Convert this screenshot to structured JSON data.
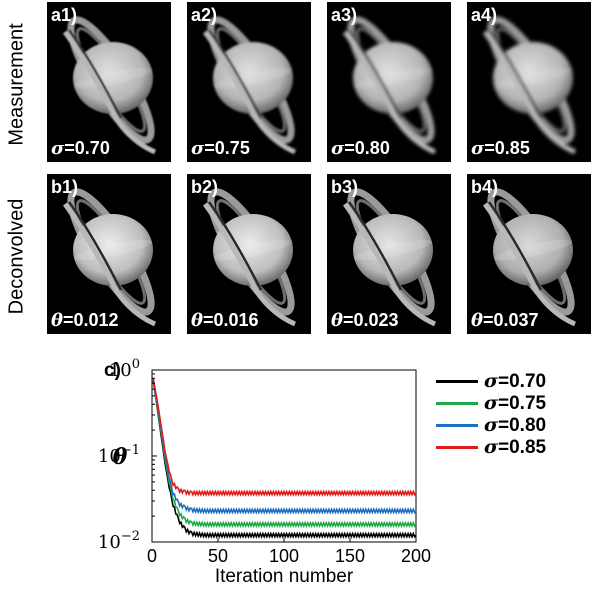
{
  "rows": [
    {
      "label": "Measurement",
      "panels": [
        {
          "tag": "a1)",
          "symbol": "σ",
          "value": "=0.70"
        },
        {
          "tag": "a2)",
          "symbol": "σ",
          "value": "=0.75"
        },
        {
          "tag": "a3)",
          "symbol": "σ",
          "value": "=0.80"
        },
        {
          "tag": "a4)",
          "symbol": "σ",
          "value": "=0.85"
        }
      ]
    },
    {
      "label": "Deconvolved",
      "panels": [
        {
          "tag": "b1)",
          "symbol": "θ",
          "value": "=0.012"
        },
        {
          "tag": "b2)",
          "symbol": "θ",
          "value": "=0.016"
        },
        {
          "tag": "b3)",
          "symbol": "θ",
          "value": "=0.023"
        },
        {
          "tag": "b4)",
          "symbol": "θ",
          "value": "=0.037"
        }
      ]
    }
  ],
  "chart_data": {
    "type": "line",
    "panel_label": "c)",
    "xlabel": "Iteration number",
    "ylabel": "θ",
    "y_scale": "log",
    "xlim": [
      0,
      200
    ],
    "ylim": [
      0.01,
      1
    ],
    "x_ticks": [
      "0",
      "50",
      "100",
      "150",
      "200"
    ],
    "y_ticks": [
      {
        "base": "10",
        "exp": "0"
      },
      {
        "base": "10",
        "exp": "−1"
      },
      {
        "base": "10",
        "exp": "−2"
      }
    ],
    "legend_position": "right",
    "series": [
      {
        "name_symbol": "σ",
        "name_value": "=0.70",
        "color": "#000000",
        "x": [
          1,
          5,
          10,
          15,
          20,
          25,
          30,
          40,
          50,
          100,
          150,
          200
        ],
        "y": [
          0.75,
          0.28,
          0.08,
          0.03,
          0.018,
          0.014,
          0.0125,
          0.012,
          0.012,
          0.012,
          0.012,
          0.012
        ]
      },
      {
        "name_symbol": "σ",
        "name_value": "=0.75",
        "color": "#1fa84a",
        "x": [
          1,
          5,
          10,
          15,
          20,
          25,
          30,
          40,
          50,
          100,
          150,
          200
        ],
        "y": [
          0.75,
          0.3,
          0.09,
          0.035,
          0.022,
          0.018,
          0.0165,
          0.016,
          0.016,
          0.016,
          0.016,
          0.016
        ]
      },
      {
        "name_symbol": "σ",
        "name_value": "=0.80",
        "color": "#1e6fbf",
        "x": [
          1,
          5,
          10,
          15,
          20,
          25,
          30,
          40,
          50,
          100,
          150,
          200
        ],
        "y": [
          0.75,
          0.32,
          0.1,
          0.04,
          0.028,
          0.025,
          0.0235,
          0.023,
          0.023,
          0.023,
          0.023,
          0.023
        ]
      },
      {
        "name_symbol": "σ",
        "name_value": "=0.85",
        "color": "#e31a1c",
        "x": [
          1,
          5,
          10,
          15,
          20,
          25,
          30,
          40,
          50,
          100,
          150,
          200
        ],
        "y": [
          0.8,
          0.35,
          0.11,
          0.05,
          0.04,
          0.038,
          0.037,
          0.037,
          0.037,
          0.037,
          0.037,
          0.037
        ]
      }
    ]
  }
}
